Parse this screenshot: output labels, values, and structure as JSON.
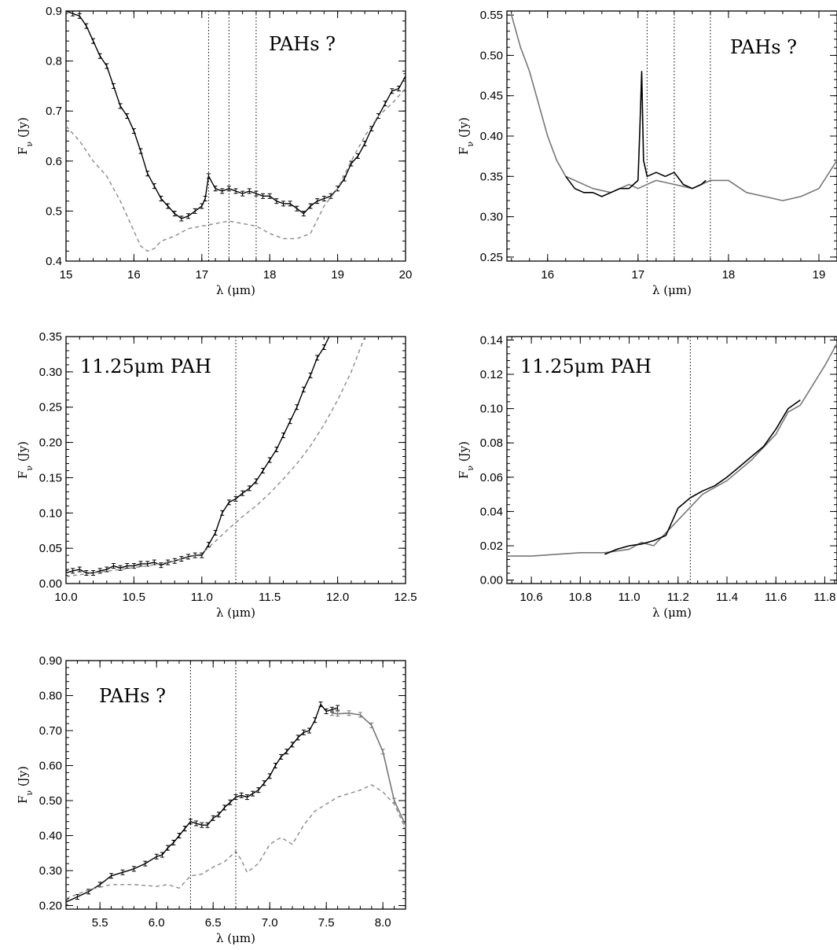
{
  "chart_data": [
    {
      "type": "line",
      "title": "",
      "xlabel": "λ (μm)",
      "ylabel": "F_ν (Jy)",
      "annotation": "PAHs ?",
      "xlim": [
        15,
        20
      ],
      "ylim": [
        0.4,
        0.9
      ],
      "xticks": [
        "15",
        "16",
        "17",
        "18",
        "19",
        "20"
      ],
      "yticks": [
        "0.4",
        "0.5",
        "0.6",
        "0.7",
        "0.8",
        "0.9"
      ],
      "vlines": [
        17.1,
        17.4,
        17.8
      ],
      "series": [
        {
          "style": "solid-black-errorbars",
          "x": [
            15.0,
            15.1,
            15.2,
            15.3,
            15.4,
            15.5,
            15.6,
            15.7,
            15.8,
            15.9,
            16.0,
            16.1,
            16.2,
            16.3,
            16.4,
            16.5,
            16.6,
            16.7,
            16.8,
            16.9,
            17.0,
            17.05,
            17.1,
            17.2,
            17.3,
            17.4,
            17.5,
            17.6,
            17.7,
            17.8,
            17.9,
            18.0,
            18.1,
            18.2,
            18.3,
            18.4,
            18.5,
            18.6,
            18.7,
            18.8,
            18.9,
            19.0,
            19.1,
            19.2,
            19.3,
            19.4,
            19.5,
            19.6,
            19.7,
            19.8,
            19.9,
            20.0
          ],
          "y": [
            0.9,
            0.895,
            0.89,
            0.87,
            0.84,
            0.81,
            0.79,
            0.75,
            0.71,
            0.69,
            0.66,
            0.62,
            0.575,
            0.55,
            0.525,
            0.51,
            0.495,
            0.485,
            0.49,
            0.5,
            0.51,
            0.525,
            0.57,
            0.545,
            0.54,
            0.545,
            0.54,
            0.535,
            0.54,
            0.535,
            0.53,
            0.53,
            0.52,
            0.515,
            0.515,
            0.505,
            0.495,
            0.51,
            0.52,
            0.525,
            0.53,
            0.545,
            0.565,
            0.595,
            0.61,
            0.635,
            0.665,
            0.69,
            0.715,
            0.74,
            0.745,
            0.77
          ]
        },
        {
          "style": "dashed-gray",
          "x": [
            15.0,
            15.2,
            15.4,
            15.6,
            15.8,
            16.0,
            16.1,
            16.2,
            16.3,
            16.4,
            16.6,
            16.8,
            17.0,
            17.2,
            17.4,
            17.6,
            17.8,
            18.0,
            18.2,
            18.4,
            18.6,
            18.8,
            19.0,
            19.2,
            19.4,
            19.6,
            19.8,
            20.0
          ],
          "y": [
            0.67,
            0.64,
            0.6,
            0.57,
            0.52,
            0.46,
            0.43,
            0.42,
            0.425,
            0.44,
            0.45,
            0.465,
            0.47,
            0.475,
            0.48,
            0.475,
            0.47,
            0.455,
            0.445,
            0.445,
            0.455,
            0.51,
            0.545,
            0.6,
            0.65,
            0.69,
            0.715,
            0.745
          ]
        }
      ]
    },
    {
      "type": "line",
      "title": "",
      "xlabel": "λ (μm)",
      "ylabel": "F_ν (Jy)",
      "annotation": "PAHs ?",
      "xlim": [
        15.55,
        19.2
      ],
      "ylim": [
        0.245,
        0.555
      ],
      "xticks": [
        "16",
        "17",
        "18",
        "19"
      ],
      "yticks": [
        "0.25",
        "0.30",
        "0.35",
        "0.40",
        "0.45",
        "0.50",
        "0.55"
      ],
      "vlines": [
        17.1,
        17.4,
        17.8
      ],
      "series": [
        {
          "style": "solid-gray",
          "x": [
            15.6,
            15.7,
            15.8,
            15.9,
            16.0,
            16.1,
            16.2,
            16.3,
            16.5,
            16.7,
            16.9,
            17.0,
            17.2,
            17.4,
            17.6,
            17.8,
            18.0,
            18.2,
            18.4,
            18.6,
            18.8,
            19.0,
            19.2
          ],
          "y": [
            0.55,
            0.51,
            0.48,
            0.44,
            0.4,
            0.37,
            0.35,
            0.345,
            0.335,
            0.33,
            0.34,
            0.335,
            0.345,
            0.34,
            0.335,
            0.345,
            0.345,
            0.33,
            0.325,
            0.32,
            0.325,
            0.335,
            0.37
          ]
        },
        {
          "style": "solid-black",
          "x": [
            16.2,
            16.3,
            16.4,
            16.5,
            16.6,
            16.7,
            16.8,
            16.9,
            16.95,
            17.0,
            17.02,
            17.04,
            17.06,
            17.1,
            17.2,
            17.3,
            17.4,
            17.5,
            17.6,
            17.7,
            17.75
          ],
          "y": [
            0.35,
            0.335,
            0.33,
            0.33,
            0.325,
            0.33,
            0.335,
            0.335,
            0.34,
            0.345,
            0.41,
            0.48,
            0.37,
            0.35,
            0.355,
            0.35,
            0.355,
            0.34,
            0.335,
            0.34,
            0.345
          ]
        }
      ]
    },
    {
      "type": "line",
      "title": "",
      "xlabel": "λ (μm)",
      "ylabel": "F_ν (Jy)",
      "annotation": "11.25μm PAH",
      "xlim": [
        10.0,
        12.5
      ],
      "ylim": [
        0.0,
        0.35
      ],
      "xticks": [
        "10.0",
        "10.5",
        "11.0",
        "11.5",
        "12.0",
        "12.5"
      ],
      "yticks": [
        "0.00",
        "0.05",
        "0.10",
        "0.15",
        "0.20",
        "0.25",
        "0.30",
        "0.35"
      ],
      "vlines": [
        11.25
      ],
      "series": [
        {
          "style": "solid-black-errorbars",
          "x": [
            10.0,
            10.05,
            10.1,
            10.15,
            10.2,
            10.25,
            10.3,
            10.35,
            10.4,
            10.45,
            10.5,
            10.55,
            10.6,
            10.65,
            10.7,
            10.75,
            10.8,
            10.85,
            10.9,
            10.95,
            11.0,
            11.05,
            11.1,
            11.15,
            11.2,
            11.25,
            11.3,
            11.35,
            11.4,
            11.45,
            11.5,
            11.55,
            11.6,
            11.65,
            11.7,
            11.75,
            11.8,
            11.85,
            11.9,
            11.95
          ],
          "y": [
            0.015,
            0.018,
            0.02,
            0.015,
            0.015,
            0.018,
            0.02,
            0.025,
            0.022,
            0.025,
            0.025,
            0.028,
            0.028,
            0.03,
            0.026,
            0.03,
            0.032,
            0.035,
            0.038,
            0.04,
            0.04,
            0.055,
            0.072,
            0.1,
            0.115,
            0.12,
            0.128,
            0.135,
            0.145,
            0.16,
            0.175,
            0.19,
            0.21,
            0.23,
            0.25,
            0.275,
            0.295,
            0.32,
            0.335,
            0.355
          ]
        },
        {
          "style": "dashed-gray",
          "x": [
            10.0,
            10.2,
            10.4,
            10.6,
            10.8,
            11.0,
            11.1,
            11.2,
            11.3,
            11.4,
            11.5,
            11.6,
            11.7,
            11.8,
            11.9,
            12.0,
            12.1,
            12.2
          ],
          "y": [
            0.01,
            0.015,
            0.02,
            0.025,
            0.032,
            0.042,
            0.06,
            0.078,
            0.095,
            0.11,
            0.128,
            0.148,
            0.17,
            0.195,
            0.225,
            0.26,
            0.3,
            0.35
          ]
        }
      ]
    },
    {
      "type": "line",
      "title": "",
      "xlabel": "λ (μm)",
      "ylabel": "F_ν (Jy)",
      "annotation": "11.25μm PAH",
      "xlim": [
        10.5,
        11.85
      ],
      "ylim": [
        -0.002,
        0.142
      ],
      "xticks": [
        "10.6",
        "10.8",
        "11.0",
        "11.2",
        "11.4",
        "11.6",
        "11.8"
      ],
      "yticks": [
        "0.00",
        "0.02",
        "0.04",
        "0.06",
        "0.08",
        "0.10",
        "0.12",
        "0.14"
      ],
      "vlines": [
        11.25
      ],
      "series": [
        {
          "style": "solid-gray",
          "x": [
            10.5,
            10.6,
            10.7,
            10.8,
            10.9,
            11.0,
            11.05,
            11.1,
            11.2,
            11.3,
            11.4,
            11.5,
            11.6,
            11.65,
            11.7,
            11.8,
            11.85
          ],
          "y": [
            0.014,
            0.014,
            0.015,
            0.016,
            0.016,
            0.018,
            0.022,
            0.02,
            0.035,
            0.05,
            0.058,
            0.07,
            0.085,
            0.098,
            0.102,
            0.125,
            0.138
          ]
        },
        {
          "style": "solid-black",
          "x": [
            10.9,
            10.95,
            11.0,
            11.05,
            11.1,
            11.15,
            11.2,
            11.25,
            11.3,
            11.35,
            11.4,
            11.45,
            11.5,
            11.55,
            11.6,
            11.65,
            11.7
          ],
          "y": [
            0.015,
            0.018,
            0.02,
            0.021,
            0.023,
            0.026,
            0.042,
            0.048,
            0.052,
            0.055,
            0.06,
            0.066,
            0.072,
            0.078,
            0.088,
            0.1,
            0.105
          ]
        }
      ]
    },
    {
      "type": "line",
      "title": "",
      "xlabel": "λ (μm)",
      "ylabel": "F_ν (Jy)",
      "annotation": "PAHs ?",
      "xlim": [
        5.2,
        8.2
      ],
      "ylim": [
        0.19,
        0.9
      ],
      "xticks": [
        "5.5",
        "6.0",
        "6.5",
        "7.0",
        "7.5",
        "8.0"
      ],
      "yticks": [
        "0.20",
        "0.30",
        "0.40",
        "0.50",
        "0.60",
        "0.70",
        "0.80",
        "0.90"
      ],
      "vlines": [
        6.3,
        6.7
      ],
      "series": [
        {
          "style": "solid-black-errorbars",
          "x": [
            5.2,
            5.3,
            5.4,
            5.5,
            5.6,
            5.7,
            5.8,
            5.9,
            6.0,
            6.05,
            6.1,
            6.15,
            6.2,
            6.25,
            6.3,
            6.35,
            6.4,
            6.45,
            6.5,
            6.55,
            6.6,
            6.65,
            6.7,
            6.75,
            6.8,
            6.85,
            6.9,
            6.95,
            7.0,
            7.05,
            7.1,
            7.15,
            7.2,
            7.25,
            7.3,
            7.35,
            7.4,
            7.45,
            7.5,
            7.55,
            7.6
          ],
          "y": [
            0.21,
            0.225,
            0.24,
            0.26,
            0.285,
            0.295,
            0.305,
            0.32,
            0.34,
            0.345,
            0.365,
            0.38,
            0.4,
            0.42,
            0.44,
            0.435,
            0.43,
            0.43,
            0.45,
            0.46,
            0.48,
            0.495,
            0.51,
            0.515,
            0.51,
            0.52,
            0.53,
            0.55,
            0.57,
            0.6,
            0.625,
            0.64,
            0.66,
            0.68,
            0.695,
            0.7,
            0.73,
            0.775,
            0.755,
            0.76,
            0.765
          ]
        },
        {
          "style": "solid-gray-errorbars",
          "x": [
            7.55,
            7.6,
            7.7,
            7.8,
            7.9,
            8.0,
            8.1,
            8.2
          ],
          "y": [
            0.75,
            0.748,
            0.75,
            0.745,
            0.715,
            0.64,
            0.5,
            0.43
          ]
        },
        {
          "style": "dashed-gray",
          "x": [
            5.2,
            5.4,
            5.6,
            5.8,
            6.0,
            6.1,
            6.2,
            6.3,
            6.4,
            6.5,
            6.6,
            6.7,
            6.75,
            6.8,
            6.9,
            7.0,
            7.1,
            7.2,
            7.3,
            7.4,
            7.5,
            7.6,
            7.7,
            7.8,
            7.9,
            8.0,
            8.1,
            8.2
          ],
          "y": [
            0.22,
            0.245,
            0.26,
            0.26,
            0.255,
            0.26,
            0.25,
            0.285,
            0.29,
            0.31,
            0.325,
            0.355,
            0.33,
            0.295,
            0.32,
            0.375,
            0.395,
            0.375,
            0.43,
            0.47,
            0.49,
            0.51,
            0.52,
            0.53,
            0.545,
            0.525,
            0.49,
            0.42
          ]
        }
      ]
    }
  ]
}
